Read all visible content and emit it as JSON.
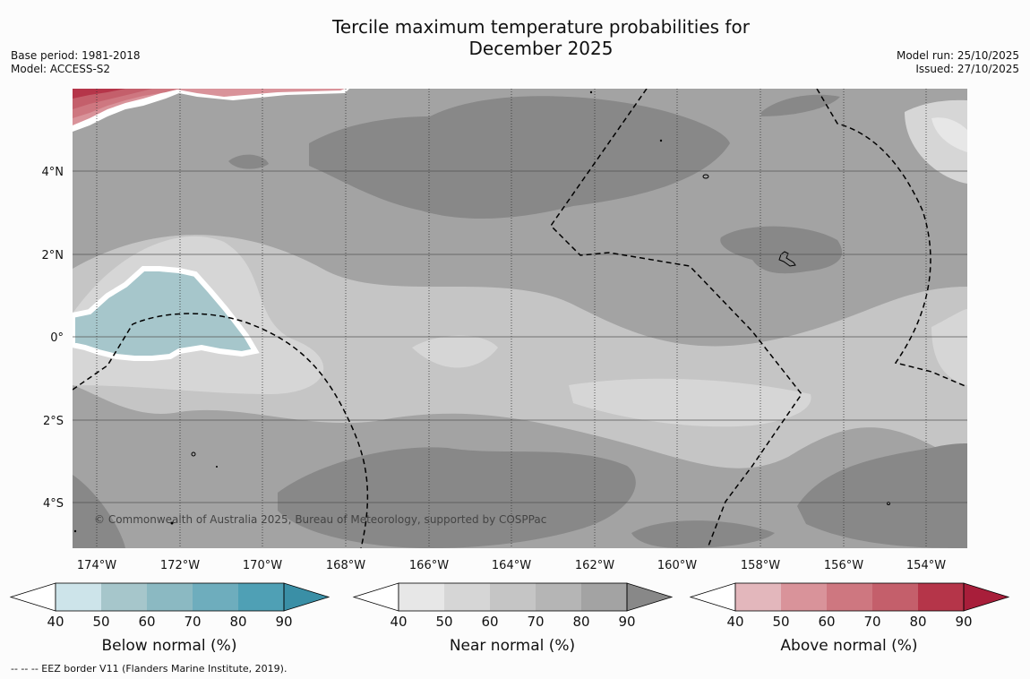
{
  "title": {
    "line1": "Tercile maximum temperature probabilities for",
    "line2": "December 2025"
  },
  "meta": {
    "base_period": "Base period: 1981-2018",
    "model": "Model: ACCESS-S2",
    "model_run": "Model run: 25/10/2025",
    "issued": "Issued: 27/10/2025"
  },
  "map": {
    "x_ticks": [
      "174°W",
      "172°W",
      "170°W",
      "168°W",
      "166°W",
      "164°W",
      "162°W",
      "160°W",
      "158°W",
      "156°W",
      "154°W"
    ],
    "y_ticks": [
      "4°N",
      "2°N",
      "0°",
      "2°S",
      "4°S"
    ],
    "copyright": "© Commonwealth of Australia 2025, Bureau of Meteorology, supported by COSPPac"
  },
  "colorbars": {
    "ticks": [
      "40",
      "50",
      "60",
      "70",
      "80",
      "90"
    ],
    "below": {
      "label": "Below normal (%)",
      "colors": [
        "#ffffff",
        "#cde4ea",
        "#a6c6cb",
        "#8bb9c2",
        "#6eadbd",
        "#4fa0b5",
        "#3a8fa6"
      ]
    },
    "near": {
      "label": "Near normal (%)",
      "colors": [
        "#ffffff",
        "#e7e7e7",
        "#d6d6d6",
        "#c5c5c5",
        "#b5b5b5",
        "#a3a3a3",
        "#888888"
      ]
    },
    "above": {
      "label": "Above normal (%)",
      "colors": [
        "#ffffff",
        "#e3b7bc",
        "#d9939a",
        "#ce7780",
        "#c45f6b",
        "#b53549",
        "#a81e3a"
      ]
    }
  },
  "footer": "--  --  -- EEZ border V11 (Flanders Marine Institute, 2019)."
}
